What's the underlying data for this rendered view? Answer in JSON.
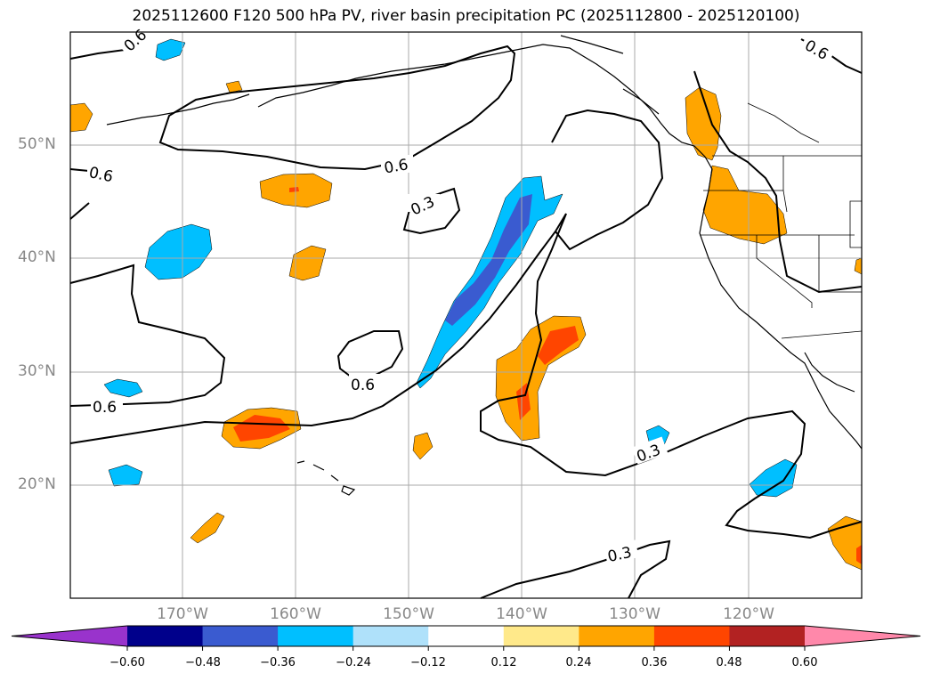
{
  "title": "2025112600 F120 500 hPa PV, river basin precipitation PC (2025112800 - 2025120100)",
  "map": {
    "lon_range": [
      -180,
      -110
    ],
    "lat_range": [
      10,
      60
    ],
    "lat_labels": [
      "50°N",
      "40°N",
      "30°N",
      "20°N"
    ],
    "lat_values": [
      50,
      40,
      30,
      20
    ],
    "lon_labels": [
      "170°W",
      "160°W",
      "150°W",
      "140°W",
      "130°W",
      "120°W"
    ],
    "lon_values": [
      -170,
      -160,
      -150,
      -140,
      -130,
      -120
    ],
    "contour_labels": [
      "0.6",
      "0.6",
      "0.6",
      "0.3",
      "0.6",
      "0.6",
      "0.6",
      "0.3",
      "0.3"
    ],
    "contour_levels": [
      0.3,
      0.6
    ],
    "grid": true,
    "projection": "PlateCarree"
  },
  "colorbar": {
    "tick_labels": [
      "−0.60",
      "−0.48",
      "−0.36",
      "−0.24",
      "−0.12",
      "0.12",
      "0.24",
      "0.36",
      "0.48",
      "0.60"
    ],
    "boundaries": [
      -0.6,
      -0.48,
      -0.36,
      -0.24,
      -0.12,
      0.12,
      0.24,
      0.36,
      0.48,
      0.6
    ],
    "colors": [
      "#9933cc",
      "#00008b",
      "#3a5bd0",
      "#00bfff",
      "#afe1fa",
      "#ffffff",
      "#ffe98a",
      "#ffa500",
      "#ff4500",
      "#b22222",
      "#ff88aa"
    ],
    "extend": "both"
  },
  "colors": {
    "orange": "#ffa500",
    "red_orange": "#ff4500",
    "cyan": "#00bfff",
    "blue": "#3a5bd0"
  }
}
